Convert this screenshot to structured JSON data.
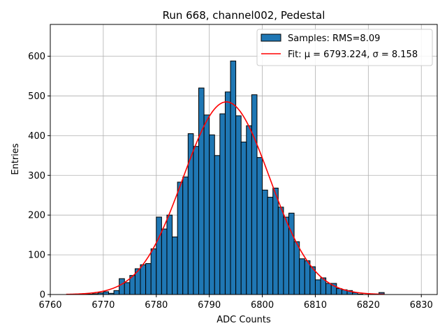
{
  "chart_data": {
    "type": "bar",
    "title": "Run 668, channel002, Pedestal",
    "xlabel": "ADC Counts",
    "ylabel": "Entries",
    "xlim": [
      6760,
      6833
    ],
    "ylim": [
      0,
      680
    ],
    "xticks": [
      6760,
      6770,
      6780,
      6790,
      6800,
      6810,
      6820,
      6830
    ],
    "yticks": [
      0,
      100,
      200,
      300,
      400,
      500,
      600
    ],
    "grid": true,
    "legend_position": "top-right",
    "histogram": {
      "name": "Samples: RMS=8.09",
      "color": "#1f77b4",
      "bin_width": 1,
      "bin_starts": [
        6763,
        6764,
        6765,
        6766,
        6767,
        6768,
        6769,
        6770,
        6771,
        6772,
        6773,
        6774,
        6775,
        6776,
        6777,
        6778,
        6779,
        6780,
        6781,
        6782,
        6783,
        6784,
        6785,
        6786,
        6787,
        6788,
        6789,
        6790,
        6791,
        6792,
        6793,
        6794,
        6795,
        6796,
        6797,
        6798,
        6799,
        6800,
        6801,
        6802,
        6803,
        6804,
        6805,
        6806,
        6807,
        6808,
        6809,
        6810,
        6811,
        6812,
        6813,
        6814,
        6815,
        6816,
        6817,
        6818,
        6819,
        6820,
        6821,
        6822
      ],
      "values": [
        0,
        0,
        0,
        1,
        1,
        2,
        4,
        7,
        3,
        10,
        40,
        30,
        48,
        65,
        75,
        78,
        115,
        195,
        165,
        200,
        145,
        283,
        296,
        405,
        373,
        520,
        452,
        402,
        350,
        455,
        510,
        588,
        450,
        384,
        425,
        503,
        345,
        263,
        245,
        268,
        220,
        195,
        205,
        133,
        90,
        85,
        70,
        37,
        42,
        28,
        28,
        15,
        12,
        10,
        5,
        1,
        0,
        0,
        0,
        5
      ]
    },
    "fit": {
      "name": "Fit: μ = 6793.224, σ = 8.158",
      "color": "#ff0000",
      "mu": 6793.224,
      "sigma": 8.158,
      "amplitude": 485,
      "x_range": [
        6763,
        6823
      ]
    }
  }
}
